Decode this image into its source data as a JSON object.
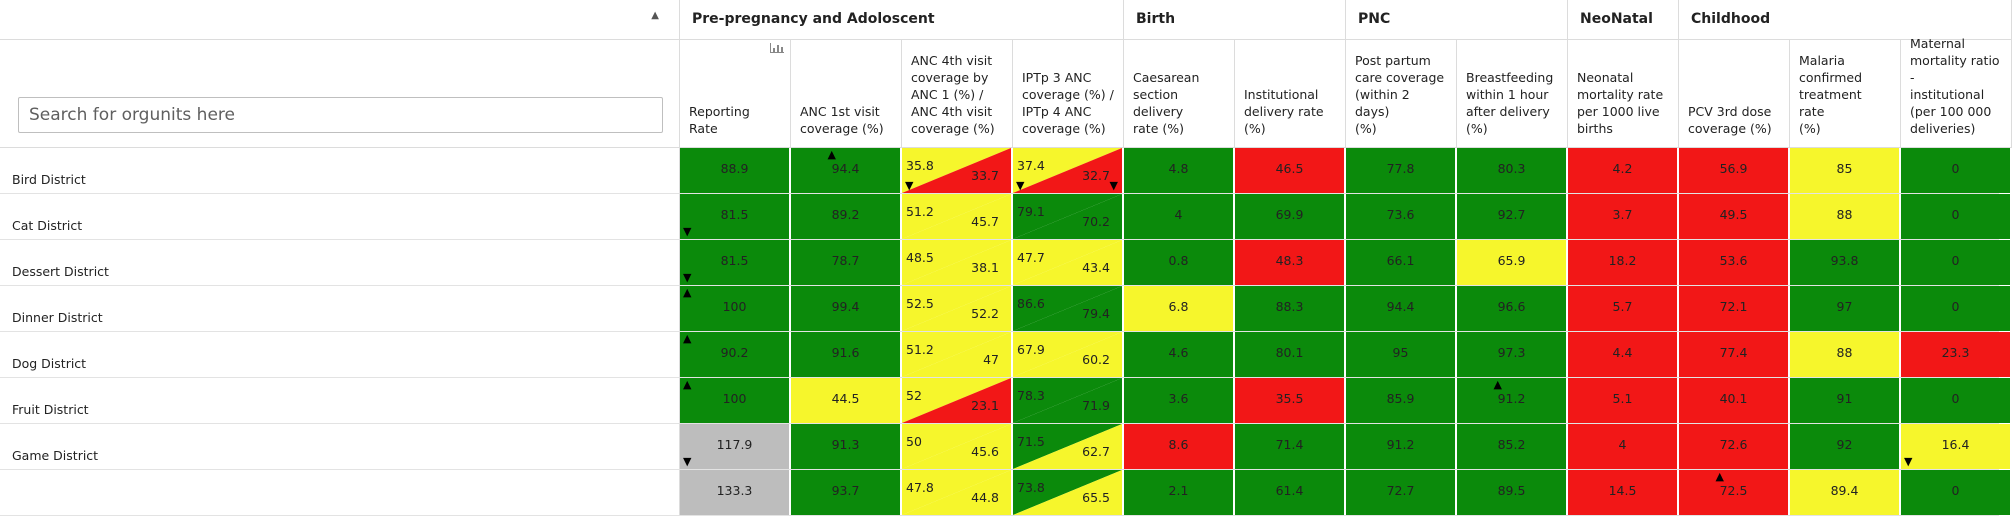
{
  "search": {
    "placeholder": "Search for orgunits here"
  },
  "colors": {
    "green": "#0b8a0b",
    "red": "#f21717",
    "yellow": "#f6f62c",
    "grey": "#bdbdbd"
  },
  "icons": {
    "sort": "sort-caret-up-icon",
    "chart": "bar-chart-icon",
    "arrow_up": "triangle-up-icon",
    "arrow_down": "triangle-down-icon"
  },
  "groups": [
    {
      "label": "Pre-pregnancy and Adoloscent",
      "span": 4
    },
    {
      "label": "Birth",
      "span": 2
    },
    {
      "label": "PNC",
      "span": 2
    },
    {
      "label": "NeoNatal",
      "span": 1
    },
    {
      "label": "Childhood",
      "span": 3
    }
  ],
  "columns": [
    {
      "label": "Reporting Rate"
    },
    {
      "label": "ANC 1st visit\ncoverage (%)"
    },
    {
      "label": "ANC 4th visit\ncoverage by\nANC 1 (%) /\nANC 4th visit\ncoverage (%)"
    },
    {
      "label": "IPTp 3 ANC\ncoverage (%) /\nIPTp 4 ANC\ncoverage (%)"
    },
    {
      "label": "Caesarean\nsection delivery\nrate (%)"
    },
    {
      "label": "Institutional\ndelivery rate\n(%)"
    },
    {
      "label": "Post partum\ncare coverage\n(within 2 days)\n(%)"
    },
    {
      "label": "Breastfeeding\nwithin 1 hour\nafter delivery\n(%)"
    },
    {
      "label": "Neonatal\nmortality rate\nper 1000 live\nbirths"
    },
    {
      "label": "PCV 3rd dose\ncoverage (%)"
    },
    {
      "label": "Malaria\nconfirmed\ntreatment rate\n(%)"
    },
    {
      "label": "Maternal\nmortality ratio -\ninstitutional\n(per 100 000\ndeliveries)"
    }
  ],
  "rows": [
    {
      "name": "Bird District",
      "cells": [
        {
          "v": "88.9",
          "c": "g"
        },
        {
          "v": "94.4",
          "c": "g",
          "arrow": "up-tm"
        },
        {
          "v1": "35.8",
          "v2": "33.7",
          "c1": "y",
          "c2": "r",
          "arrow": "down-bl"
        },
        {
          "v1": "37.4",
          "v2": "32.7",
          "c1": "y",
          "c2": "r",
          "arrow": "down-bl",
          "arrow2": "down-br"
        },
        {
          "v": "4.8",
          "c": "g"
        },
        {
          "v": "46.5",
          "c": "r"
        },
        {
          "v": "77.8",
          "c": "g"
        },
        {
          "v": "80.3",
          "c": "g"
        },
        {
          "v": "4.2",
          "c": "r"
        },
        {
          "v": "56.9",
          "c": "r"
        },
        {
          "v": "85",
          "c": "y"
        },
        {
          "v": "0",
          "c": "g"
        }
      ]
    },
    {
      "name": "Cat District",
      "cells": [
        {
          "v": "81.5",
          "c": "g",
          "arrow": "down-bl"
        },
        {
          "v": "89.2",
          "c": "g"
        },
        {
          "v1": "51.2",
          "v2": "45.7",
          "c1": "y",
          "c2": "y"
        },
        {
          "v1": "79.1",
          "v2": "70.2",
          "c1": "g",
          "c2": "g"
        },
        {
          "v": "4",
          "c": "g"
        },
        {
          "v": "69.9",
          "c": "g"
        },
        {
          "v": "73.6",
          "c": "g"
        },
        {
          "v": "92.7",
          "c": "g"
        },
        {
          "v": "3.7",
          "c": "r"
        },
        {
          "v": "49.5",
          "c": "r"
        },
        {
          "v": "88",
          "c": "y"
        },
        {
          "v": "0",
          "c": "g"
        }
      ]
    },
    {
      "name": "Dessert District",
      "cells": [
        {
          "v": "81.5",
          "c": "g",
          "arrow": "down-bl"
        },
        {
          "v": "78.7",
          "c": "g"
        },
        {
          "v1": "48.5",
          "v2": "38.1",
          "c1": "y",
          "c2": "y"
        },
        {
          "v1": "47.7",
          "v2": "43.4",
          "c1": "y",
          "c2": "y"
        },
        {
          "v": "0.8",
          "c": "g"
        },
        {
          "v": "48.3",
          "c": "r"
        },
        {
          "v": "66.1",
          "c": "g"
        },
        {
          "v": "65.9",
          "c": "y"
        },
        {
          "v": "18.2",
          "c": "r"
        },
        {
          "v": "53.6",
          "c": "r"
        },
        {
          "v": "93.8",
          "c": "g"
        },
        {
          "v": "0",
          "c": "g"
        }
      ]
    },
    {
      "name": "Dinner District",
      "cells": [
        {
          "v": "100",
          "c": "g",
          "arrow": "up-tl"
        },
        {
          "v": "99.4",
          "c": "g"
        },
        {
          "v1": "52.5",
          "v2": "52.2",
          "c1": "y",
          "c2": "y"
        },
        {
          "v1": "86.6",
          "v2": "79.4",
          "c1": "g",
          "c2": "g"
        },
        {
          "v": "6.8",
          "c": "y"
        },
        {
          "v": "88.3",
          "c": "g"
        },
        {
          "v": "94.4",
          "c": "g"
        },
        {
          "v": "96.6",
          "c": "g"
        },
        {
          "v": "5.7",
          "c": "r"
        },
        {
          "v": "72.1",
          "c": "r"
        },
        {
          "v": "97",
          "c": "g"
        },
        {
          "v": "0",
          "c": "g"
        }
      ]
    },
    {
      "name": "Dog District",
      "cells": [
        {
          "v": "90.2",
          "c": "g",
          "arrow": "up-tl"
        },
        {
          "v": "91.6",
          "c": "g"
        },
        {
          "v1": "51.2",
          "v2": "47",
          "c1": "y",
          "c2": "y"
        },
        {
          "v1": "67.9",
          "v2": "60.2",
          "c1": "y",
          "c2": "y"
        },
        {
          "v": "4.6",
          "c": "g"
        },
        {
          "v": "80.1",
          "c": "g"
        },
        {
          "v": "95",
          "c": "g"
        },
        {
          "v": "97.3",
          "c": "g"
        },
        {
          "v": "4.4",
          "c": "r"
        },
        {
          "v": "77.4",
          "c": "r"
        },
        {
          "v": "88",
          "c": "y"
        },
        {
          "v": "23.3",
          "c": "r"
        }
      ]
    },
    {
      "name": "Fruit District",
      "cells": [
        {
          "v": "100",
          "c": "g",
          "arrow": "up-tl"
        },
        {
          "v": "44.5",
          "c": "y"
        },
        {
          "v1": "52",
          "v2": "23.1",
          "c1": "y",
          "c2": "r"
        },
        {
          "v1": "78.3",
          "v2": "71.9",
          "c1": "g",
          "c2": "g"
        },
        {
          "v": "3.6",
          "c": "g"
        },
        {
          "v": "35.5",
          "c": "r"
        },
        {
          "v": "85.9",
          "c": "g"
        },
        {
          "v": "91.2",
          "c": "g",
          "arrow": "up-tm"
        },
        {
          "v": "5.1",
          "c": "r"
        },
        {
          "v": "40.1",
          "c": "r"
        },
        {
          "v": "91",
          "c": "g"
        },
        {
          "v": "0",
          "c": "g"
        }
      ]
    },
    {
      "name": "Game District",
      "cells": [
        {
          "v": "117.9",
          "c": "s",
          "arrow": "down-bl"
        },
        {
          "v": "91.3",
          "c": "g"
        },
        {
          "v1": "50",
          "v2": "45.6",
          "c1": "y",
          "c2": "y"
        },
        {
          "v1": "71.5",
          "v2": "62.7",
          "c1": "g",
          "c2": "y"
        },
        {
          "v": "8.6",
          "c": "r"
        },
        {
          "v": "71.4",
          "c": "g"
        },
        {
          "v": "91.2",
          "c": "g"
        },
        {
          "v": "85.2",
          "c": "g"
        },
        {
          "v": "4",
          "c": "r"
        },
        {
          "v": "72.6",
          "c": "r"
        },
        {
          "v": "92",
          "c": "g"
        },
        {
          "v": "16.4",
          "c": "y",
          "arrow": "down-bl"
        }
      ]
    },
    {
      "name": "",
      "cells": [
        {
          "v": "133.3",
          "c": "s"
        },
        {
          "v": "93.7",
          "c": "g"
        },
        {
          "v1": "47.8",
          "v2": "44.8",
          "c1": "y",
          "c2": "y"
        },
        {
          "v1": "73.8",
          "v2": "65.5",
          "c1": "g",
          "c2": "y"
        },
        {
          "v": "2.1",
          "c": "g"
        },
        {
          "v": "61.4",
          "c": "g"
        },
        {
          "v": "72.7",
          "c": "g"
        },
        {
          "v": "89.5",
          "c": "g"
        },
        {
          "v": "14.5",
          "c": "r"
        },
        {
          "v": "72.5",
          "c": "r",
          "arrow": "up-tm"
        },
        {
          "v": "89.4",
          "c": "y"
        },
        {
          "v": "0",
          "c": "g"
        }
      ]
    }
  ]
}
